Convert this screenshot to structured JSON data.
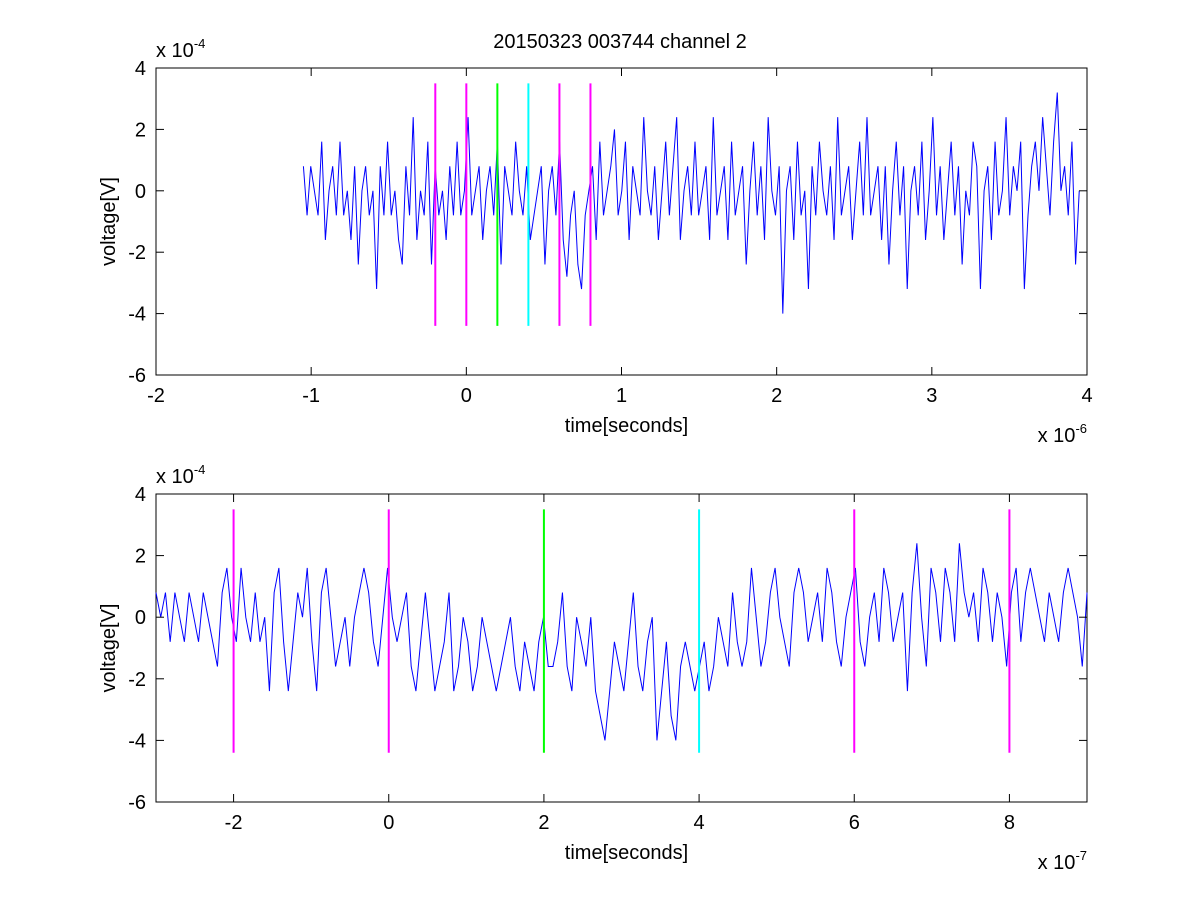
{
  "title": "20150323 003744 channel 2",
  "colors": {
    "signal": "#0000ff",
    "marker_magenta": "#ff00ff",
    "marker_green": "#00ff00",
    "marker_cyan": "#00ffff",
    "axis": "#000000",
    "background": "#ffffff"
  },
  "chart_data": [
    {
      "type": "line",
      "xlabel": "time[seconds]",
      "ylabel": "voltage[V]",
      "x_exponent_base": "x 10",
      "x_exponent_power": "-6",
      "y_exponent_base": "x 10",
      "y_exponent_power": "-4",
      "xlim": [
        -2.0,
        4.0
      ],
      "ylim": [
        -6,
        4
      ],
      "x_ticks": [
        -2,
        -1,
        0,
        1,
        2,
        3,
        4
      ],
      "x_tick_labels": [
        "-2",
        "-1",
        "0",
        "1",
        "2",
        "3",
        "4"
      ],
      "y_ticks": [
        -6,
        -4,
        -2,
        0,
        2,
        4
      ],
      "y_tick_labels": [
        "-6",
        "-4",
        "-2",
        "0",
        "2",
        "4"
      ],
      "grid": false,
      "series": [
        {
          "kind": "signal",
          "color": "#0000ff",
          "x_start": -1.05,
          "x_end": 3.95,
          "quantization_step": 0.8,
          "values_sampled": [
            0.8,
            -0.8,
            0.8,
            0.0,
            -0.8,
            1.6,
            -1.6,
            0.0,
            0.8,
            -0.8,
            1.6,
            -0.8,
            0.0,
            -1.6,
            0.8,
            -2.4,
            0.0,
            0.8,
            -0.8,
            0.0,
            -3.2,
            0.8,
            -0.8,
            1.6,
            -0.8,
            0.0,
            -1.6,
            -2.4,
            0.8,
            -0.8,
            2.4,
            -1.6,
            0.0,
            -0.8,
            1.6,
            -2.4,
            0.8,
            -0.8,
            0.0,
            -1.6,
            0.8,
            -0.8,
            1.6,
            -0.8,
            0.0,
            2.4,
            -0.8,
            0.0,
            0.8,
            -1.6,
            0.0,
            0.8,
            -0.8,
            1.6,
            -2.4,
            0.8,
            0.0,
            -0.8,
            1.6,
            0.0,
            -0.8,
            0.8,
            -1.6,
            -0.8,
            0.0,
            0.8,
            -2.4,
            0.0,
            0.8,
            -0.8,
            1.6,
            -1.6,
            -2.8,
            -0.8,
            0.0,
            -2.4,
            -3.2,
            -0.8,
            0.0,
            0.8,
            -1.6,
            1.6,
            -0.8,
            0.0,
            0.8,
            2.0,
            -0.8,
            0.0,
            1.6,
            -1.6,
            0.8,
            0.0,
            -0.8,
            2.4,
            0.0,
            -0.8,
            0.8,
            -1.6,
            0.0,
            1.6,
            -0.8,
            0.8,
            2.4,
            -1.6,
            0.0,
            0.8,
            -0.8,
            1.6,
            -0.8,
            0.0,
            0.8,
            -1.6,
            2.4,
            -0.8,
            0.0,
            0.8,
            -1.6,
            1.6,
            -0.8,
            0.0,
            0.8,
            -2.4,
            0.0,
            1.6,
            -0.8,
            0.8,
            -1.6,
            2.4,
            0.0,
            -0.8,
            0.8,
            -4.0,
            0.0,
            0.8,
            -1.6,
            1.6,
            -0.8,
            0.0,
            -3.2,
            0.8,
            -0.8,
            1.6,
            0.0,
            -0.8,
            0.8,
            -1.6,
            2.4,
            -0.8,
            0.0,
            0.8,
            -1.6,
            0.0,
            1.6,
            -0.8,
            2.4,
            -0.8,
            0.0,
            0.8,
            -1.6,
            0.8,
            -2.4,
            0.0,
            1.6,
            -0.8,
            0.8,
            -3.2,
            0.0,
            0.8,
            -0.8,
            1.6,
            -1.6,
            0.0,
            2.4,
            -0.8,
            0.8,
            -1.6,
            0.0,
            1.6,
            -0.8,
            0.8,
            -2.4,
            0.0,
            -0.8,
            1.6,
            0.8,
            -3.2,
            0.0,
            0.8,
            -1.6,
            1.6,
            -0.8,
            0.0,
            2.4,
            -0.8,
            0.8,
            0.0,
            1.6,
            -3.2,
            -0.8,
            0.8,
            1.6,
            0.0,
            2.4,
            0.8,
            -0.8,
            1.6,
            3.2,
            0.0,
            0.8,
            -0.8,
            1.6,
            -2.4,
            0.0
          ]
        }
      ],
      "markers": [
        {
          "x": -0.2,
          "color": "#ff00ff",
          "y_range": [
            -4.4,
            3.5
          ]
        },
        {
          "x": 0.0,
          "color": "#ff00ff",
          "y_range": [
            -4.4,
            3.5
          ]
        },
        {
          "x": 0.2,
          "color": "#00ff00",
          "y_range": [
            -4.4,
            3.5
          ]
        },
        {
          "x": 0.4,
          "color": "#00ffff",
          "y_range": [
            -4.4,
            3.5
          ]
        },
        {
          "x": 0.6,
          "color": "#ff00ff",
          "y_range": [
            -4.4,
            3.5
          ]
        },
        {
          "x": 0.8,
          "color": "#ff00ff",
          "y_range": [
            -4.4,
            3.5
          ]
        }
      ]
    },
    {
      "type": "line",
      "xlabel": "time[seconds]",
      "ylabel": "voltage[V]",
      "x_exponent_base": "x 10",
      "x_exponent_power": "-7",
      "y_exponent_base": "x 10",
      "y_exponent_power": "-4",
      "xlim": [
        -3.0,
        9.0
      ],
      "ylim": [
        -6,
        4
      ],
      "x_ticks": [
        -2,
        0,
        2,
        4,
        6,
        8
      ],
      "x_tick_labels": [
        "-2",
        "0",
        "2",
        "4",
        "6",
        "8"
      ],
      "y_ticks": [
        -6,
        -4,
        -2,
        0,
        2,
        4
      ],
      "y_tick_labels": [
        "-6",
        "-4",
        "-2",
        "0",
        "2",
        "4"
      ],
      "grid": false,
      "series": [
        {
          "kind": "signal",
          "color": "#0000ff",
          "x_start": -3.0,
          "x_end": 9.0,
          "quantization_step": 0.8,
          "values_sampled": [
            0.8,
            0.0,
            0.8,
            -0.8,
            0.8,
            0.0,
            -0.8,
            0.8,
            0.0,
            -0.8,
            0.8,
            0.0,
            -0.8,
            -1.6,
            0.8,
            1.6,
            0.0,
            -0.8,
            1.6,
            0.0,
            -0.8,
            0.8,
            -0.8,
            0.0,
            -2.4,
            0.8,
            1.6,
            -0.8,
            -2.4,
            -0.8,
            0.8,
            0.0,
            1.6,
            -0.8,
            -2.4,
            0.8,
            1.6,
            0.0,
            -1.6,
            -0.8,
            0.0,
            -1.6,
            0.0,
            0.8,
            1.6,
            0.8,
            -0.8,
            -1.6,
            0.0,
            1.6,
            0.0,
            -0.8,
            0.0,
            0.8,
            -1.6,
            -2.4,
            -0.8,
            0.8,
            -0.8,
            -2.4,
            -1.6,
            -0.8,
            0.8,
            -2.4,
            -1.6,
            0.0,
            -0.8,
            -2.4,
            -1.6,
            0.0,
            -0.8,
            -1.6,
            -2.4,
            -1.6,
            -0.8,
            0.0,
            -1.6,
            -2.4,
            -0.8,
            -1.6,
            -2.4,
            -0.8,
            0.0,
            -1.6,
            -1.6,
            -0.8,
            0.8,
            -1.6,
            -2.4,
            0.0,
            -0.8,
            -1.6,
            0.0,
            -2.4,
            -3.2,
            -4.0,
            -2.4,
            -0.8,
            -1.6,
            -2.4,
            -0.8,
            0.8,
            -1.6,
            -2.4,
            -0.8,
            0.0,
            -4.0,
            -2.4,
            -0.8,
            -3.2,
            -4.0,
            -1.6,
            -0.8,
            -1.6,
            -2.4,
            -1.6,
            -0.8,
            -2.4,
            -1.6,
            0.0,
            -0.8,
            -1.6,
            0.8,
            -0.8,
            -1.6,
            -0.8,
            1.6,
            0.0,
            -1.6,
            -0.8,
            0.8,
            1.6,
            0.0,
            -0.8,
            -1.6,
            0.8,
            1.6,
            0.8,
            -0.8,
            0.0,
            0.8,
            -0.8,
            1.6,
            0.8,
            -0.8,
            -1.6,
            0.0,
            0.8,
            1.6,
            -0.8,
            -1.6,
            0.0,
            0.8,
            -0.8,
            1.6,
            0.8,
            -0.8,
            0.0,
            0.8,
            -2.4,
            0.8,
            2.4,
            0.0,
            -1.6,
            1.6,
            0.8,
            -0.8,
            1.6,
            0.8,
            -0.8,
            2.4,
            0.8,
            0.0,
            0.8,
            -0.8,
            1.6,
            0.8,
            -0.8,
            0.8,
            0.0,
            -1.6,
            0.8,
            1.6,
            -0.8,
            0.8,
            1.6,
            0.8,
            0.0,
            -0.8,
            0.8,
            0.0,
            -0.8,
            0.8,
            1.6,
            0.8,
            0.0,
            -1.6,
            0.8
          ]
        }
      ],
      "markers": [
        {
          "x": -2.0,
          "color": "#ff00ff",
          "y_range": [
            -4.4,
            3.5
          ]
        },
        {
          "x": 0.0,
          "color": "#ff00ff",
          "y_range": [
            -4.4,
            3.5
          ]
        },
        {
          "x": 2.0,
          "color": "#00ff00",
          "y_range": [
            -4.4,
            3.5
          ]
        },
        {
          "x": 4.0,
          "color": "#00ffff",
          "y_range": [
            -4.4,
            3.5
          ]
        },
        {
          "x": 6.0,
          "color": "#ff00ff",
          "y_range": [
            -4.4,
            3.5
          ]
        },
        {
          "x": 8.0,
          "color": "#ff00ff",
          "y_range": [
            -4.4,
            3.5
          ]
        }
      ]
    }
  ]
}
